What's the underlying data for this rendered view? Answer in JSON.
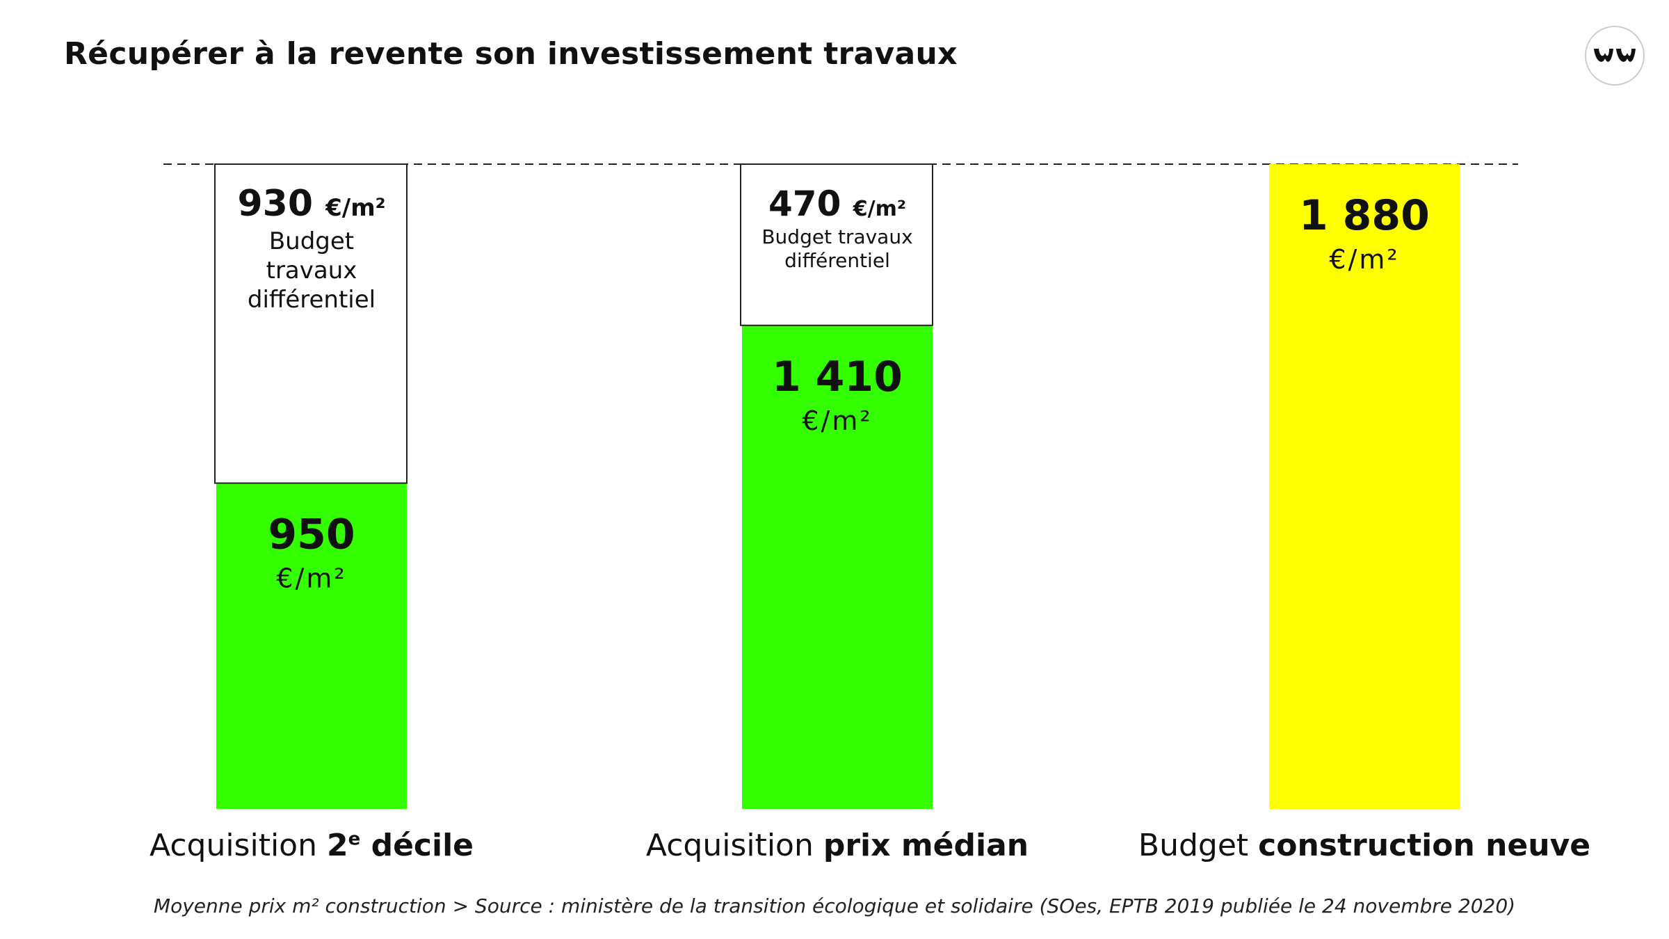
{
  "header": {
    "title": "Récupérer à la revente son investissement travaux"
  },
  "logo": {
    "icon": "brand-logo-icon"
  },
  "colors": {
    "acquisition": "#33ff00",
    "construction": "#ffff00",
    "budget_box_fill": "#ffffff",
    "text": "#111111"
  },
  "chart_data": {
    "type": "bar",
    "stacked": true,
    "title": "",
    "xlabel": "",
    "ylabel": "",
    "ylim": [
      0,
      1880
    ],
    "grid": false,
    "legend": "none",
    "reference_line": {
      "value": 1880,
      "style": "dashed"
    },
    "categories": [
      {
        "prefix": "Acquisition ",
        "bold": "2",
        "sup": "e",
        "bold2": " décile"
      },
      {
        "prefix": "Acquisition ",
        "bold": "prix médian",
        "sup": "",
        "bold2": ""
      },
      {
        "prefix": "Budget ",
        "bold": "construction neuve",
        "sup": "",
        "bold2": ""
      }
    ],
    "series": [
      {
        "key": "acquisition",
        "values": [
          950,
          1410,
          1880
        ],
        "labels": [
          "950",
          "1 410",
          "1 880"
        ],
        "unit": "€/m²",
        "colors": [
          "#33ff00",
          "#33ff00",
          "#ffff00"
        ]
      },
      {
        "key": "budget_travaux",
        "values": [
          930,
          470,
          0
        ],
        "labels": [
          "930",
          "470",
          ""
        ],
        "unit": "€/m²",
        "caption_lines": [
          [
            "Budget",
            "travaux",
            "différentiel"
          ],
          [
            "Budget travaux",
            "différentiel"
          ],
          []
        ]
      }
    ]
  },
  "footer": {
    "source": "Moyenne prix m² construction > Source : ministère de la transition écologique et solidaire (SOes, EPTB 2019 publiée le 24 novembre 2020)"
  }
}
